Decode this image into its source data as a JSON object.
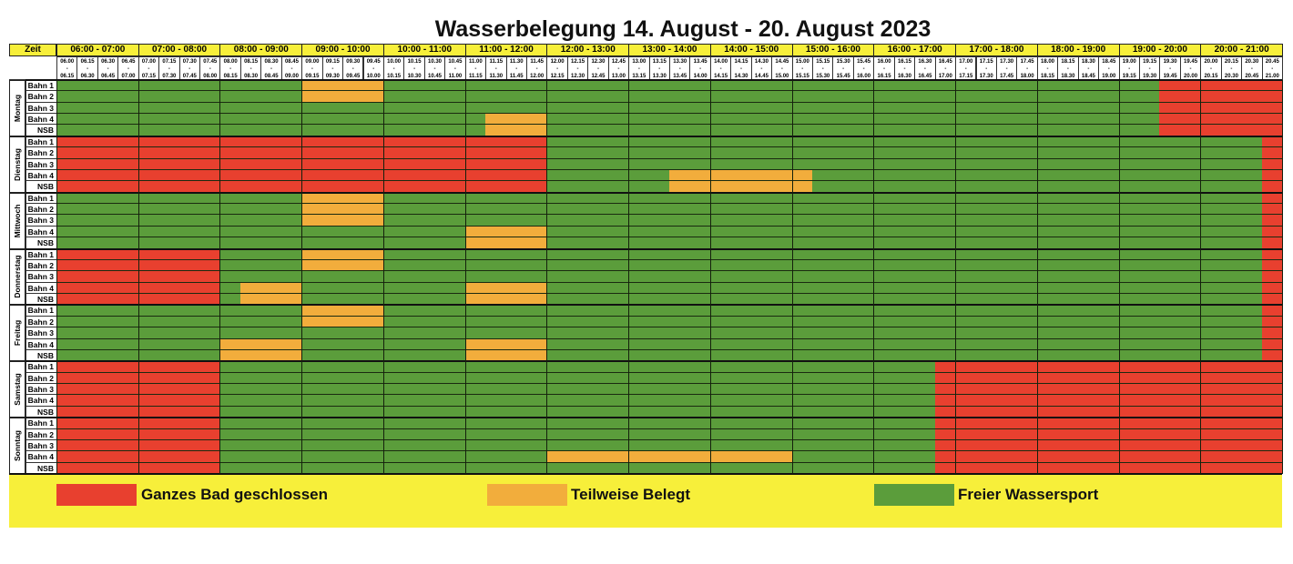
{
  "title": "Wasserbelegung 14. August - 20. August 2023",
  "zeit_label": "Zeit",
  "hours": [
    "06:00 - 07:00",
    "07:00 - 08:00",
    "08:00 - 09:00",
    "09:00 - 10:00",
    "10:00 - 11:00",
    "11:00 - 12:00",
    "12:00 - 13:00",
    "13:00 - 14:00",
    "14:00 - 15:00",
    "15:00 - 16:00",
    "16:00 - 17:00",
    "17:00 - 18:00",
    "18:00 - 19:00",
    "19:00 - 20:00",
    "20:00 - 21:00"
  ],
  "slot_separator": "-",
  "slots": [
    [
      "06.00",
      "06.15"
    ],
    [
      "06.15",
      "06.30"
    ],
    [
      "06.30",
      "06.45"
    ],
    [
      "06.45",
      "07.00"
    ],
    [
      "07.00",
      "07.15"
    ],
    [
      "07.15",
      "07.30"
    ],
    [
      "07.30",
      "07.45"
    ],
    [
      "07.45",
      "08.00"
    ],
    [
      "08.00",
      "08.15"
    ],
    [
      "08.15",
      "08.30"
    ],
    [
      "08.30",
      "08.45"
    ],
    [
      "08.45",
      "09.00"
    ],
    [
      "09.00",
      "09.15"
    ],
    [
      "09.15",
      "09.30"
    ],
    [
      "09.30",
      "09.45"
    ],
    [
      "09.45",
      "10.00"
    ],
    [
      "10.00",
      "10.15"
    ],
    [
      "10.15",
      "10.30"
    ],
    [
      "10.30",
      "10.45"
    ],
    [
      "10.45",
      "11.00"
    ],
    [
      "11.00",
      "11.15"
    ],
    [
      "11.15",
      "11.30"
    ],
    [
      "11.30",
      "11.45"
    ],
    [
      "11.45",
      "12.00"
    ],
    [
      "12.00",
      "12.15"
    ],
    [
      "12.15",
      "12.30"
    ],
    [
      "12.30",
      "12.45"
    ],
    [
      "12.45",
      "13.00"
    ],
    [
      "13.00",
      "13.15"
    ],
    [
      "13.15",
      "13.30"
    ],
    [
      "13.30",
      "13.45"
    ],
    [
      "13.45",
      "14.00"
    ],
    [
      "14.00",
      "14.15"
    ],
    [
      "14.15",
      "14.30"
    ],
    [
      "14.30",
      "14.45"
    ],
    [
      "14.45",
      "15.00"
    ],
    [
      "15.00",
      "15.15"
    ],
    [
      "15.15",
      "15.30"
    ],
    [
      "15.30",
      "15.45"
    ],
    [
      "15.45",
      "16.00"
    ],
    [
      "16.00",
      "16.15"
    ],
    [
      "16.15",
      "16.30"
    ],
    [
      "16.30",
      "16.45"
    ],
    [
      "16.45",
      "17.00"
    ],
    [
      "17.00",
      "17.15"
    ],
    [
      "17.15",
      "17.30"
    ],
    [
      "17.30",
      "17.45"
    ],
    [
      "17.45",
      "18.00"
    ],
    [
      "18.00",
      "18.15"
    ],
    [
      "18.15",
      "18.30"
    ],
    [
      "18.30",
      "18.45"
    ],
    [
      "18.45",
      "19.00"
    ],
    [
      "19.00",
      "19.15"
    ],
    [
      "19.15",
      "19.30"
    ],
    [
      "19.30",
      "19.45"
    ],
    [
      "19.45",
      "20.00"
    ],
    [
      "20.00",
      "20.15"
    ],
    [
      "20.15",
      "20.30"
    ],
    [
      "20.30",
      "20.45"
    ],
    [
      "20.45",
      "21.00"
    ]
  ],
  "lanes": [
    "Bahn 1",
    "Bahn 2",
    "Bahn 3",
    "Bahn 4",
    "NSB"
  ],
  "status_colors": {
    "R": "#e8402f",
    "O": "#f2ad3c",
    "G": "#5b9d3b"
  },
  "days": [
    {
      "name": "Montag",
      "rows": [
        "GGGGGGGGGGGGOOOOGGGGGGGGGGGGGGGGGGGGGGGGGGGGGGGGGGGGGGRRRRRR",
        "GGGGGGGGGGGGOOOOGGGGGGGGGGGGGGGGGGGGGGGGGGGGGGGGGGGGGGRRRRRR",
        "GGGGGGGGGGGGGGGGGGGGGGGGGGGGGGGGGGGGGGGGGGGGGGGGGGGGGGRRRRRR",
        "GGGGGGGGGGGGGGGGGGGGGOOOGGGGGGGGGGGGGGGGGGGGGGGGGGGGGGRRRRRR",
        "GGGGGGGGGGGGGGGGGGGGGOOOGGGGGGGGGGGGGGGGGGGGGGGGGGGGGGRRRRRR"
      ]
    },
    {
      "name": "Dienstag",
      "rows": [
        "RRRRRRRRRRRRRRRRRRRRRRRRGGGGGGGGGGGGGGGGGGGGGGGGGGGGGGGGGGGR",
        "RRRRRRRRRRRRRRRRRRRRRRRRGGGGGGGGGGGGGGGGGGGGGGGGGGGGGGGGGGGR",
        "RRRRRRRRRRRRRRRRRRRRRRRRGGGGGGGGGGGGGGGGGGGGGGGGGGGGGGGGGGGR",
        "RRRRRRRRRRRRRRRRRRRRRRRRGGGGGGOOOOOOOGGGGGGGGGGGGGGGGGGGGGGR",
        "RRRRRRRRRRRRRRRRRRRRRRRRGGGGGGOOOOOOOGGGGGGGGGGGGGGGGGGGGGGR"
      ]
    },
    {
      "name": "Mittwoch",
      "rows": [
        "GGGGGGGGGGGGOOOOGGGGGGGGGGGGGGGGGGGGGGGGGGGGGGGGGGGGGGGGGGGR",
        "GGGGGGGGGGGGOOOOGGGGGGGGGGGGGGGGGGGGGGGGGGGGGGGGGGGGGGGGGGGR",
        "GGGGGGGGGGGGOOOOGGGGGGGGGGGGGGGGGGGGGGGGGGGGGGGGGGGGGGGGGGGR",
        "GGGGGGGGGGGGGGGGGGGGOOOOGGGGGGGGGGGGGGGGGGGGGGGGGGGGGGGGGGGR",
        "GGGGGGGGGGGGGGGGGGGGOOOOGGGGGGGGGGGGGGGGGGGGGGGGGGGGGGGGGGGR"
      ]
    },
    {
      "name": "Donnerstag",
      "rows": [
        "RRRRRRRRGGGGOOOOGGGGGGGGGGGGGGGGGGGGGGGGGGGGGGGGGGGGGGGGGGGR",
        "RRRRRRRRGGGGOOOOGGGGGGGGGGGGGGGGGGGGGGGGGGGGGGGGGGGGGGGGGGGR",
        "RRRRRRRRGGGGGGGGGGGGGGGGGGGGGGGGGGGGGGGGGGGGGGGGGGGGGGGGGGGR",
        "RRRRRRRRGOOOGGGGGGGGOOOOGGGGGGGGGGGGGGGGGGGGGGGGGGGGGGGGGGGR",
        "RRRRRRRRGOOOGGGGGGGGOOOOGGGGGGGGGGGGGGGGGGGGGGGGGGGGGGGGGGGR"
      ]
    },
    {
      "name": "Freitag",
      "rows": [
        "GGGGGGGGGGGGOOOOGGGGGGGGGGGGGGGGGGGGGGGGGGGGGGGGGGGGGGGGGGGR",
        "GGGGGGGGGGGGOOOOGGGGGGGGGGGGGGGGGGGGGGGGGGGGGGGGGGGGGGGGGGGR",
        "GGGGGGGGGGGGGGGGGGGGGGGGGGGGGGGGGGGGGGGGGGGGGGGGGGGGGGGGGGGR",
        "GGGGGGGGOOOOGGGGGGGGOOOOGGGGGGGGGGGGGGGGGGGGGGGGGGGGGGGGGGGR",
        "GGGGGGGGOOOOGGGGGGGGOOOOGGGGGGGGGGGGGGGGGGGGGGGGGGGGGGGGGGGR"
      ]
    },
    {
      "name": "Samstag",
      "rows": [
        "RRRRRRRRGGGGGGGGGGGGGGGGGGGGGGGGGGGGGGGGGGGRRRRRRRRRRRRRRRRR",
        "RRRRRRRRGGGGGGGGGGGGGGGGGGGGGGGGGGGGGGGGGGGRRRRRRRRRRRRRRRRR",
        "RRRRRRRRGGGGGGGGGGGGGGGGGGGGGGGGGGGGGGGGGGGRRRRRRRRRRRRRRRRR",
        "RRRRRRRRGGGGGGGGGGGGGGGGGGGGGGGGGGGGGGGGGGGRRRRRRRRRRRRRRRRR",
        "RRRRRRRRGGGGGGGGGGGGGGGGGGGGGGGGGGGGGGGGGGGRRRRRRRRRRRRRRRRR"
      ]
    },
    {
      "name": "Sonntag",
      "rows": [
        "RRRRRRRRGGGGGGGGGGGGGGGGGGGGGGGGGGGGGGGGGGGRRRRRRRRRRRRRRRRR",
        "RRRRRRRRGGGGGGGGGGGGGGGGGGGGGGGGGGGGGGGGGGGRRRRRRRRRRRRRRRRR",
        "RRRRRRRRGGGGGGGGGGGGGGGGGGGGGGGGGGGGGGGGGGGRRRRRRRRRRRRRRRRR",
        "RRRRRRRRGGGGGGGGGGGGGGGGOOOOOOOOOOOOGGGGGGGRRRRRRRRRRRRRRRRR",
        "RRRRRRRRGGGGGGGGGGGGGGGGGGGGGGGGGGGGGGGGGGGRRRRRRRRRRRRRRRRR"
      ]
    }
  ],
  "legend": [
    {
      "code": "R",
      "label": "Ganzes Bad geschlossen"
    },
    {
      "code": "O",
      "label": "Teilweise Belegt"
    },
    {
      "code": "G",
      "label": "Freier Wassersport"
    }
  ],
  "legend_background": "#f7ef3a"
}
